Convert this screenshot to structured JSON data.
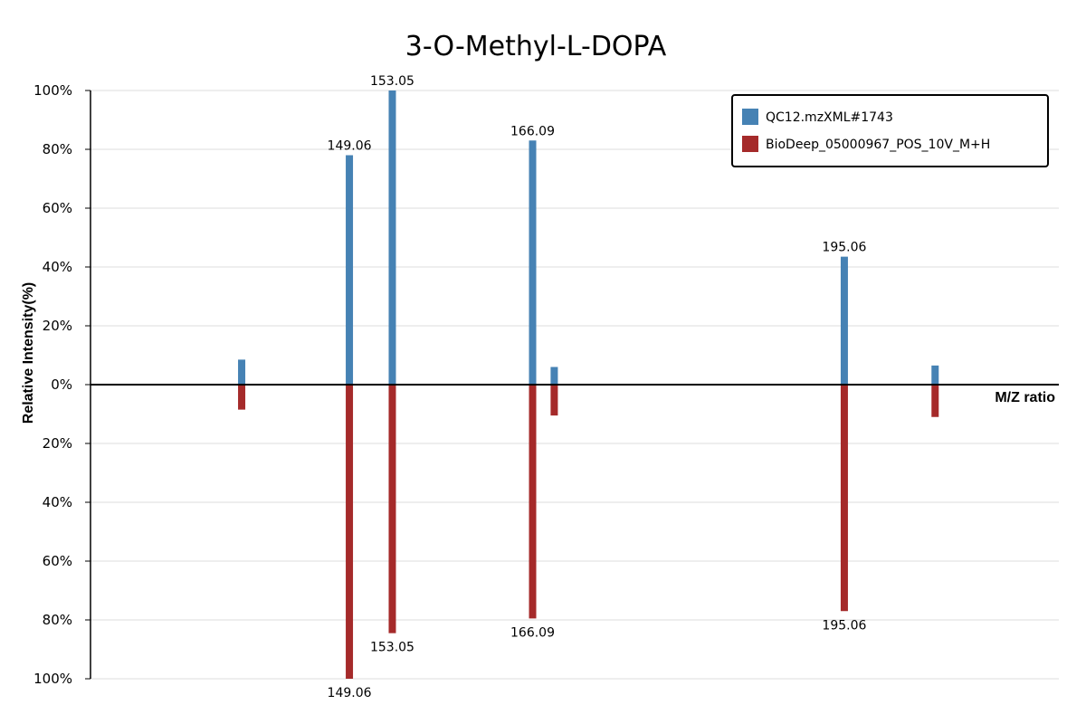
{
  "chart_data": {
    "type": "bar",
    "title": "3-O-Methyl-L-DOPA",
    "ylabel": "Relative Intensity(%)",
    "xlabel": "M/Z ratio",
    "y_ticks_top": [
      "100%",
      "80%",
      "60%",
      "40%",
      "20%",
      "0%"
    ],
    "y_ticks_bottom": [
      "20%",
      "40%",
      "60%",
      "80%",
      "100%"
    ],
    "ylim": [
      -100,
      100
    ],
    "xlim": [
      125,
      215
    ],
    "grid": true,
    "legend_position": "top-right",
    "series": [
      {
        "name": "QC12.mzXML#1743",
        "color": "#4682b4",
        "direction": "up",
        "points": [
          {
            "mz": 139.05,
            "intensity": 8.5,
            "label": ""
          },
          {
            "mz": 149.06,
            "intensity": 78,
            "label": "149.06"
          },
          {
            "mz": 153.05,
            "intensity": 100,
            "label": "153.05"
          },
          {
            "mz": 166.09,
            "intensity": 83,
            "label": "166.09"
          },
          {
            "mz": 168.1,
            "intensity": 6,
            "label": ""
          },
          {
            "mz": 195.06,
            "intensity": 43.5,
            "label": "195.06"
          },
          {
            "mz": 203.5,
            "intensity": 6.5,
            "label": ""
          }
        ]
      },
      {
        "name": "BioDeep_05000967_POS_10V_M+H",
        "color": "#a52a2a",
        "direction": "down",
        "points": [
          {
            "mz": 139.05,
            "intensity": 8.5,
            "label": ""
          },
          {
            "mz": 149.06,
            "intensity": 100,
            "label": "149.06"
          },
          {
            "mz": 153.05,
            "intensity": 84.5,
            "label": "153.05"
          },
          {
            "mz": 166.09,
            "intensity": 79.5,
            "label": "166.09"
          },
          {
            "mz": 168.1,
            "intensity": 10.5,
            "label": ""
          },
          {
            "mz": 195.06,
            "intensity": 77,
            "label": "195.06"
          },
          {
            "mz": 203.5,
            "intensity": 11,
            "label": ""
          }
        ]
      }
    ]
  }
}
